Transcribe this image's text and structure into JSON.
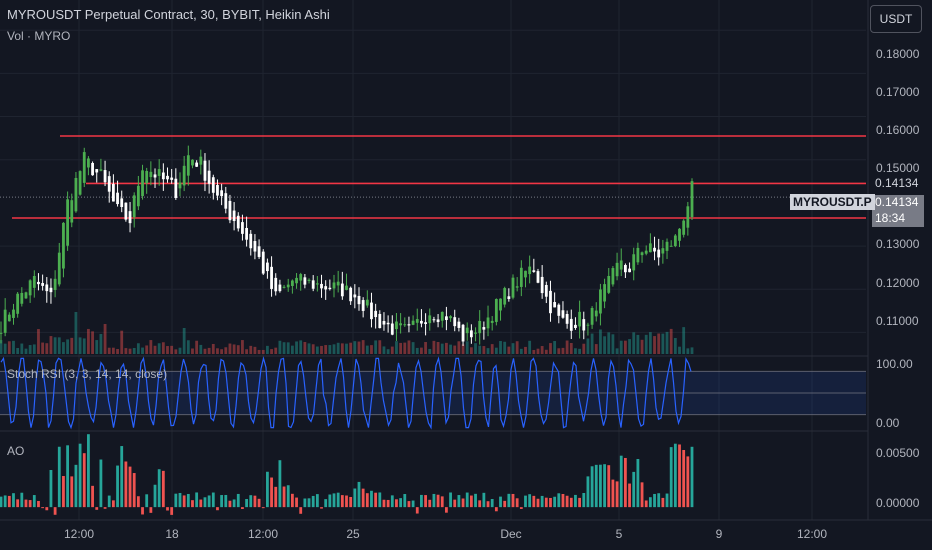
{
  "header": {
    "title": "MYROUSDT Perpetual Contract, 30, BYBIT, Heikin Ashi",
    "volume_label": "Vol · MYRO",
    "currency_button": "USDT"
  },
  "price_axis": {
    "ticks": [
      "0.18000",
      "0.17000",
      "0.16000",
      "0.15000",
      "0.13000",
      "0.12000",
      "0.11000"
    ],
    "price_tag_top": "0.14134",
    "price_tag_bottom": "0.14134",
    "countdown": "18:34",
    "symbol_tag": "MYROUSDT.P"
  },
  "stoch_pane": {
    "label": "Stoch RSI (3, 3, 14, 14, close)",
    "ticks": [
      "100.00",
      "0.00"
    ]
  },
  "ao_pane": {
    "label": "AO",
    "ticks": [
      "0.00500",
      "0.00000"
    ]
  },
  "time_axis": {
    "ticks": [
      "12:00",
      "18",
      "12:00",
      "25",
      "Dec",
      "5",
      "9",
      "12:00"
    ]
  },
  "colors": {
    "background": "#131722",
    "up": "#26a69a",
    "down": "#ef5350",
    "candle_up": "#4caf50",
    "candle_down": "#ffffff",
    "level_line": "#f23645",
    "stoch_line": "#2962ff",
    "stoch_band": "#2962ff"
  },
  "chart_data": {
    "type": "line",
    "title": "MYROUSDT Perpetual Contract, 30, BYBIT, Heikin Ashi",
    "x_ticks": [
      "12:00",
      "18",
      "12:00",
      "25",
      "Dec",
      "5",
      "9",
      "12:00"
    ],
    "ylim": [
      0.105,
      0.187
    ],
    "y_ticks": [
      0.18,
      0.17,
      0.16,
      0.15,
      0.13,
      0.12,
      0.11
    ],
    "price_anchors": [
      {
        "t": 0,
        "p": 0.112
      },
      {
        "t": 4,
        "p": 0.118
      },
      {
        "t": 8,
        "p": 0.122
      },
      {
        "t": 12,
        "p": 0.118
      },
      {
        "t": 16,
        "p": 0.14
      },
      {
        "t": 20,
        "p": 0.15
      },
      {
        "t": 24,
        "p": 0.146
      },
      {
        "t": 28,
        "p": 0.138
      },
      {
        "t": 31,
        "p": 0.136
      },
      {
        "t": 34,
        "p": 0.149
      },
      {
        "t": 38,
        "p": 0.146
      },
      {
        "t": 42,
        "p": 0.143
      },
      {
        "t": 45,
        "p": 0.151
      },
      {
        "t": 48,
        "p": 0.149
      },
      {
        "t": 52,
        "p": 0.141
      },
      {
        "t": 57,
        "p": 0.135
      },
      {
        "t": 62,
        "p": 0.127
      },
      {
        "t": 66,
        "p": 0.118
      },
      {
        "t": 70,
        "p": 0.122
      },
      {
        "t": 76,
        "p": 0.121
      },
      {
        "t": 82,
        "p": 0.12
      },
      {
        "t": 86,
        "p": 0.118
      },
      {
        "t": 90,
        "p": 0.113
      },
      {
        "t": 94,
        "p": 0.111
      },
      {
        "t": 98,
        "p": 0.11
      },
      {
        "t": 103,
        "p": 0.115
      },
      {
        "t": 107,
        "p": 0.114
      },
      {
        "t": 111,
        "p": 0.109
      },
      {
        "t": 115,
        "p": 0.111
      },
      {
        "t": 119,
        "p": 0.116
      },
      {
        "t": 123,
        "p": 0.121
      },
      {
        "t": 126,
        "p": 0.124
      },
      {
        "t": 128,
        "p": 0.125
      },
      {
        "t": 131,
        "p": 0.118
      },
      {
        "t": 134,
        "p": 0.113
      },
      {
        "t": 136,
        "p": 0.112
      },
      {
        "t": 139,
        "p": 0.113
      },
      {
        "t": 141,
        "p": 0.111
      },
      {
        "t": 143,
        "p": 0.117
      },
      {
        "t": 146,
        "p": 0.121
      },
      {
        "t": 149,
        "p": 0.127
      },
      {
        "t": 151,
        "p": 0.123
      },
      {
        "t": 153,
        "p": 0.13
      },
      {
        "t": 156,
        "p": 0.129
      },
      {
        "t": 158,
        "p": 0.128
      },
      {
        "t": 160,
        "p": 0.13
      },
      {
        "t": 162,
        "p": 0.1315
      },
      {
        "t": 165,
        "p": 0.14
      },
      {
        "t": 166,
        "p": 0.143
      }
    ],
    "horizontal_levels": [
      0.1555,
      0.1445,
      0.1365
    ],
    "last_price": 0.14134,
    "stoch_rsi": {
      "ylim": [
        0,
        100
      ],
      "bands": [
        80,
        50,
        20
      ]
    },
    "ao": {
      "ylim": [
        -0.0012,
        0.0075
      ],
      "y_ticks": [
        0.005,
        0.0
      ]
    }
  }
}
